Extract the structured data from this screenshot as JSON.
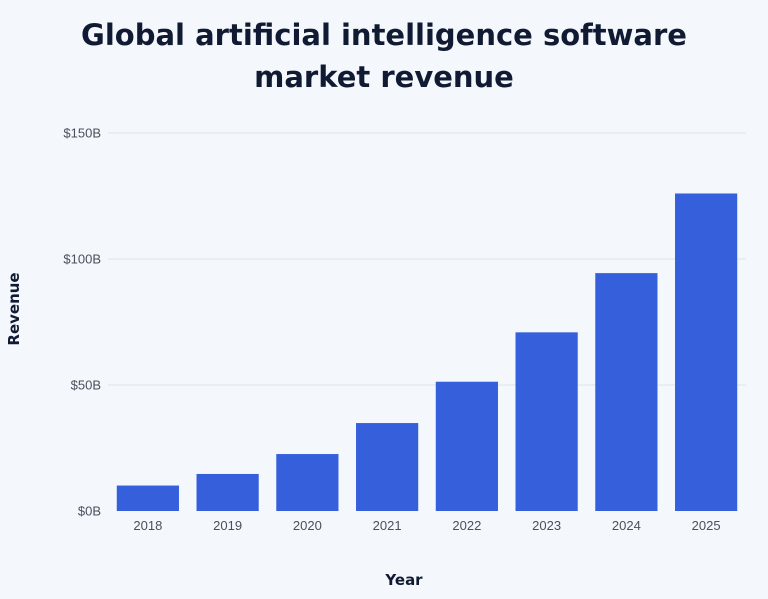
{
  "chart_data": {
    "type": "bar",
    "title": "Global artificial intelligence software market revenue",
    "title_lines": [
      "Global artificial intelligence software",
      "market revenue"
    ],
    "xlabel": "Year",
    "ylabel": "Revenue",
    "categories": [
      "2018",
      "2019",
      "2020",
      "2021",
      "2022",
      "2023",
      "2024",
      "2025"
    ],
    "values": [
      10.1,
      14.7,
      22.6,
      34.9,
      51.3,
      70.9,
      94.4,
      126.0
    ],
    "value_unit": "billion USD",
    "ylim": [
      0,
      150
    ],
    "y_ticks": [
      0,
      50,
      100,
      150
    ],
    "y_tick_labels": [
      "$0B",
      "$50B",
      "$100B",
      "$150B"
    ],
    "grid": true,
    "legend": "none",
    "colors": {
      "bar": "#365fdc",
      "background": "#f4f8fc",
      "grid": "#dde3ec",
      "title": "#101a33",
      "tick_text": "#4a4f5c"
    }
  }
}
